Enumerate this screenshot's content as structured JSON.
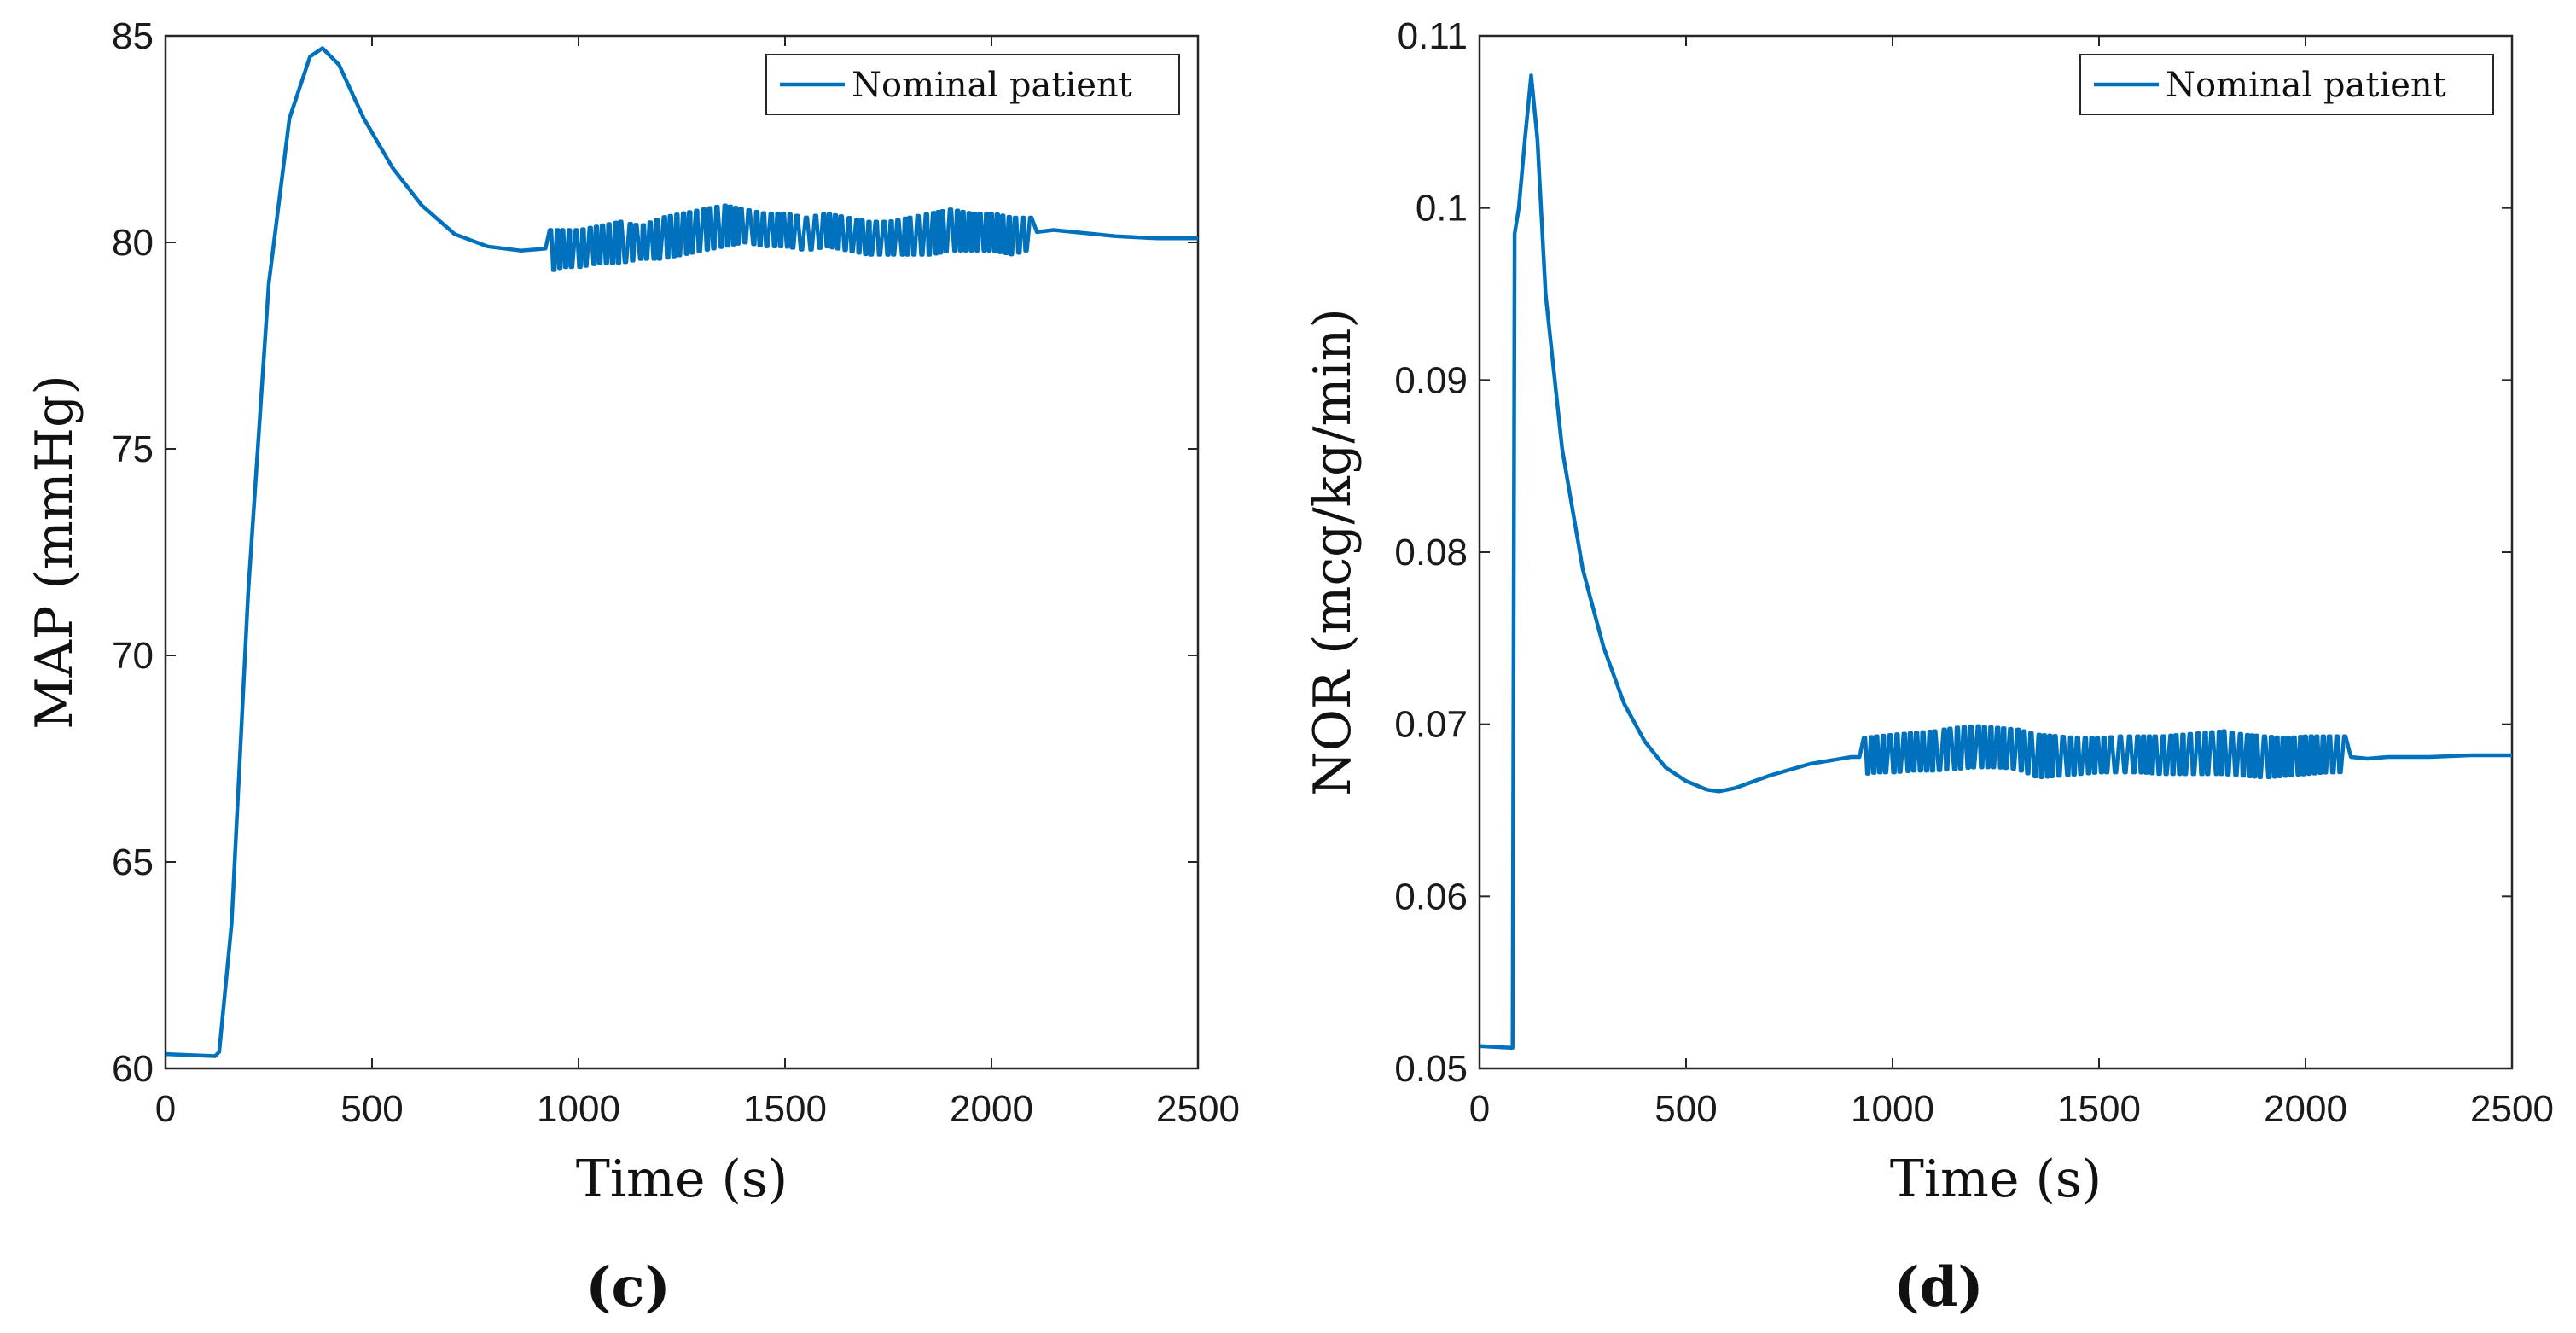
{
  "colors": {
    "series": "#0072BD",
    "axis": "#262626"
  },
  "chart_data": [
    {
      "type": "line",
      "panel_label": "(c)",
      "xlabel": "Time (s)",
      "ylabel": "MAP (mmHg)",
      "xlim": [
        0,
        2500
      ],
      "ylim": [
        60,
        85
      ],
      "xticks": [
        0,
        500,
        1000,
        1500,
        2000,
        2500
      ],
      "yticks": [
        60,
        65,
        70,
        75,
        80,
        85
      ],
      "xtick_labels": [
        "0",
        "500",
        "1000",
        "1500",
        "2000",
        "2500"
      ],
      "ytick_labels": [
        "60",
        "65",
        "70",
        "75",
        "80",
        "85"
      ],
      "legend": {
        "position": "top-right",
        "entries": [
          "Nominal patient"
        ]
      },
      "series": [
        {
          "name": "Nominal patient",
          "x": [
            0,
            120,
            130,
            160,
            200,
            250,
            300,
            350,
            380,
            420,
            480,
            550,
            620,
            700,
            780,
            860,
            920
          ],
          "y": [
            60.35,
            60.3,
            60.4,
            63.5,
            71.5,
            79.0,
            83.0,
            84.5,
            84.7,
            84.3,
            83.0,
            81.8,
            80.9,
            80.2,
            79.9,
            79.8,
            79.85
          ],
          "oscillation": {
            "x": [
              930,
              960,
              1000,
              1050,
              1100,
              1150,
              1200,
              1250,
              1300,
              1350,
              1400,
              1450,
              1500,
              1550,
              1600,
              1650,
              1700,
              1750,
              1800,
              1850,
              1900,
              1950,
              2000,
              2050,
              2080,
              2100
            ],
            "upper": [
              80.3,
              80.3,
              80.3,
              80.4,
              80.5,
              80.4,
              80.6,
              80.7,
              80.8,
              80.9,
              80.8,
              80.7,
              80.7,
              80.6,
              80.7,
              80.6,
              80.5,
              80.5,
              80.6,
              80.7,
              80.8,
              80.7,
              80.7,
              80.6,
              80.6,
              80.6
            ],
            "lower": [
              79.3,
              79.4,
              79.4,
              79.5,
              79.5,
              79.6,
              79.6,
              79.7,
              79.8,
              79.9,
              80.0,
              79.9,
              79.9,
              79.8,
              79.9,
              79.8,
              79.7,
              79.7,
              79.7,
              79.7,
              79.8,
              79.8,
              79.8,
              79.7,
              79.8,
              79.8
            ],
            "step": 8
          },
          "tail_x": [
            2110,
            2150,
            2200,
            2300,
            2400,
            2500
          ],
          "tail_y": [
            80.25,
            80.3,
            80.25,
            80.15,
            80.1,
            80.1
          ]
        }
      ]
    },
    {
      "type": "line",
      "panel_label": "(d)",
      "xlabel": "Time (s)",
      "ylabel": "NOR (mcg/kg/min)",
      "xlim": [
        0,
        2500
      ],
      "ylim": [
        0.05,
        0.11
      ],
      "xticks": [
        0,
        500,
        1000,
        1500,
        2000,
        2500
      ],
      "yticks": [
        0.05,
        0.06,
        0.07,
        0.08,
        0.09,
        0.1,
        0.11
      ],
      "xtick_labels": [
        "0",
        "500",
        "1000",
        "1500",
        "2000",
        "2500"
      ],
      "ytick_labels": [
        "0.05",
        "0.06",
        "0.07",
        "0.08",
        "0.09",
        "0.1",
        "0.11"
      ],
      "legend": {
        "position": "top-right",
        "entries": [
          "Nominal patient"
        ]
      },
      "series": [
        {
          "name": "Nominal patient",
          "x": [
            0,
            75,
            80,
            85,
            95,
            110,
            125,
            140,
            160,
            200,
            250,
            300,
            350,
            400,
            450,
            500,
            550,
            580,
            620,
            700,
            800,
            900,
            920
          ],
          "y": [
            0.0513,
            0.0512,
            0.0512,
            0.0985,
            0.1,
            0.104,
            0.1077,
            0.104,
            0.095,
            0.086,
            0.079,
            0.0745,
            0.0712,
            0.069,
            0.0675,
            0.0667,
            0.0662,
            0.0661,
            0.0663,
            0.067,
            0.0677,
            0.0681,
            0.0681
          ],
          "oscillation": {
            "x": [
              930,
              960,
              1000,
              1050,
              1100,
              1150,
              1200,
              1250,
              1300,
              1350,
              1400,
              1450,
              1500,
              1550,
              1600,
              1650,
              1700,
              1750,
              1800,
              1850,
              1900,
              1950,
              2000,
              2050,
              2080,
              2100
            ],
            "upper": [
              0.0692,
              0.0693,
              0.0694,
              0.0695,
              0.0696,
              0.0698,
              0.0699,
              0.0698,
              0.0697,
              0.0694,
              0.0693,
              0.0692,
              0.0692,
              0.0693,
              0.0693,
              0.0693,
              0.0694,
              0.0695,
              0.0696,
              0.0694,
              0.0693,
              0.0692,
              0.0693,
              0.0693,
              0.0693,
              0.0693
            ],
            "lower": [
              0.0671,
              0.0672,
              0.0672,
              0.0673,
              0.0673,
              0.0674,
              0.0675,
              0.0675,
              0.0674,
              0.0669,
              0.067,
              0.0671,
              0.0672,
              0.0672,
              0.0672,
              0.0671,
              0.0671,
              0.0671,
              0.0671,
              0.067,
              0.0669,
              0.067,
              0.0671,
              0.0672,
              0.0672,
              0.0673
            ],
            "step": 8
          },
          "tail_x": [
            2110,
            2150,
            2200,
            2300,
            2400,
            2500
          ],
          "tail_y": [
            0.0681,
            0.068,
            0.0681,
            0.0681,
            0.0682,
            0.0682
          ]
        }
      ]
    }
  ]
}
